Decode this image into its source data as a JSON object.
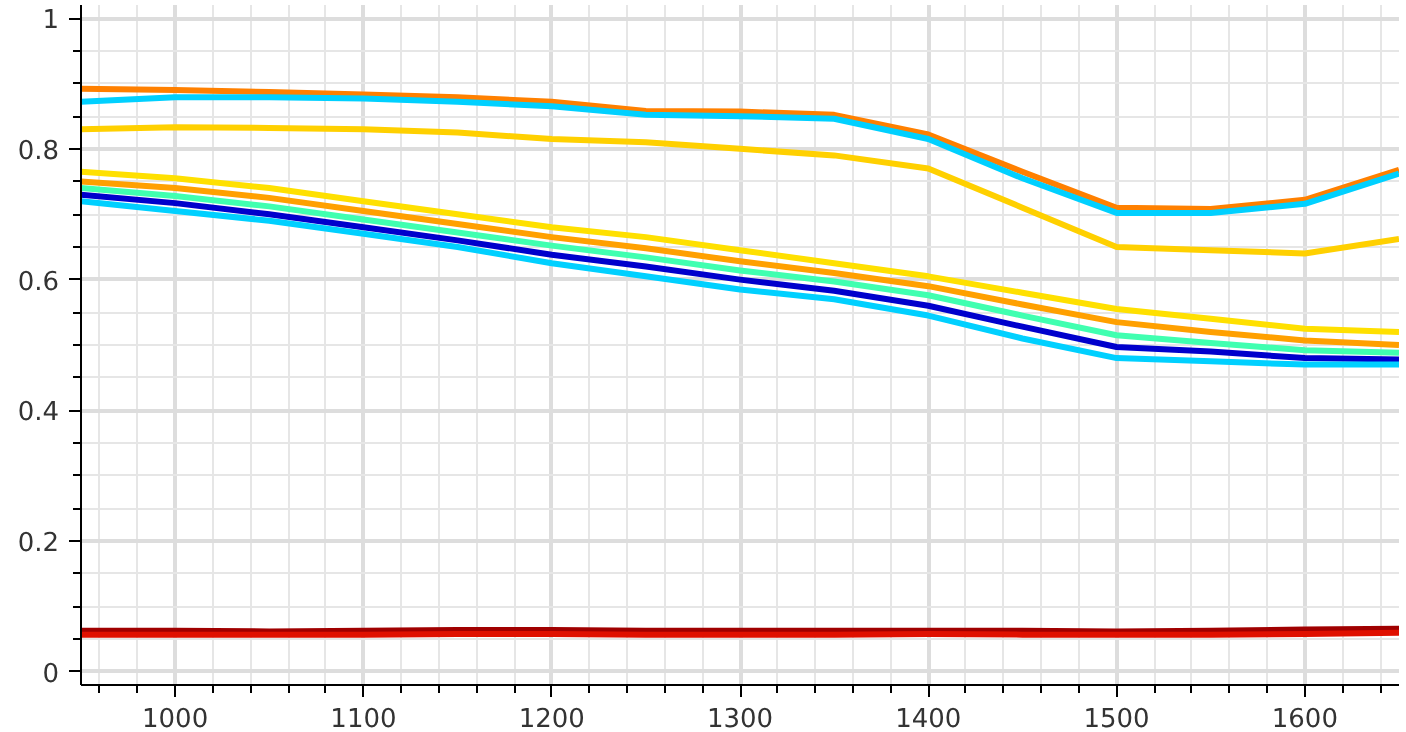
{
  "chart_data": {
    "type": "line",
    "x": [
      950,
      1000,
      1050,
      1100,
      1150,
      1200,
      1250,
      1300,
      1350,
      1400,
      1450,
      1500,
      1550,
      1600,
      1650
    ],
    "series": [
      {
        "color": "#ff8000",
        "values": [
          0.892,
          0.89,
          0.887,
          0.883,
          0.879,
          0.872,
          0.858,
          0.857,
          0.852,
          0.822,
          0.765,
          0.71,
          0.708,
          0.722,
          0.768
        ]
      },
      {
        "color": "#00d0ff",
        "values": [
          0.872,
          0.879,
          0.879,
          0.877,
          0.872,
          0.865,
          0.852,
          0.85,
          0.846,
          0.815,
          0.755,
          0.702,
          0.702,
          0.716,
          0.762
        ]
      },
      {
        "color": "#ffd000",
        "values": [
          0.83,
          0.833,
          0.832,
          0.83,
          0.825,
          0.815,
          0.81,
          0.8,
          0.79,
          0.77,
          0.71,
          0.65,
          0.645,
          0.64,
          0.662
        ]
      },
      {
        "color": "#ffe000",
        "values": [
          0.765,
          0.755,
          0.74,
          0.72,
          0.7,
          0.68,
          0.665,
          0.645,
          0.625,
          0.605,
          0.58,
          0.555,
          0.54,
          0.525,
          0.52
        ]
      },
      {
        "color": "#ffa000",
        "values": [
          0.75,
          0.74,
          0.725,
          0.705,
          0.685,
          0.665,
          0.648,
          0.628,
          0.61,
          0.59,
          0.562,
          0.535,
          0.52,
          0.507,
          0.5
        ]
      },
      {
        "color": "#40ffb0",
        "values": [
          0.74,
          0.728,
          0.712,
          0.692,
          0.672,
          0.652,
          0.634,
          0.614,
          0.597,
          0.576,
          0.545,
          0.515,
          0.503,
          0.492,
          0.488
        ]
      },
      {
        "color": "#0000cc",
        "values": [
          0.73,
          0.717,
          0.7,
          0.68,
          0.66,
          0.638,
          0.62,
          0.6,
          0.583,
          0.56,
          0.528,
          0.497,
          0.49,
          0.48,
          0.478
        ]
      },
      {
        "color": "#00d0ff",
        "values": [
          0.72,
          0.705,
          0.69,
          0.67,
          0.65,
          0.625,
          0.605,
          0.585,
          0.57,
          0.545,
          0.51,
          0.48,
          0.475,
          0.47,
          0.47
        ]
      },
      {
        "color": "#a00000",
        "values": [
          0.063,
          0.063,
          0.062,
          0.063,
          0.064,
          0.064,
          0.063,
          0.063,
          0.063,
          0.063,
          0.063,
          0.062,
          0.063,
          0.065,
          0.066
        ]
      },
      {
        "color": "#e01000",
        "values": [
          0.057,
          0.057,
          0.057,
          0.057,
          0.058,
          0.058,
          0.057,
          0.057,
          0.057,
          0.058,
          0.057,
          0.057,
          0.057,
          0.058,
          0.06
        ]
      }
    ],
    "xlim": [
      950,
      1650
    ],
    "ylim": [
      -0.02,
      1.02
    ],
    "xticks": [
      1000,
      1100,
      1200,
      1300,
      1400,
      1500,
      1600
    ],
    "yticks": [
      0,
      0.2,
      0.4,
      0.6,
      0.8,
      1
    ],
    "grid": true,
    "line_style": "solid"
  }
}
